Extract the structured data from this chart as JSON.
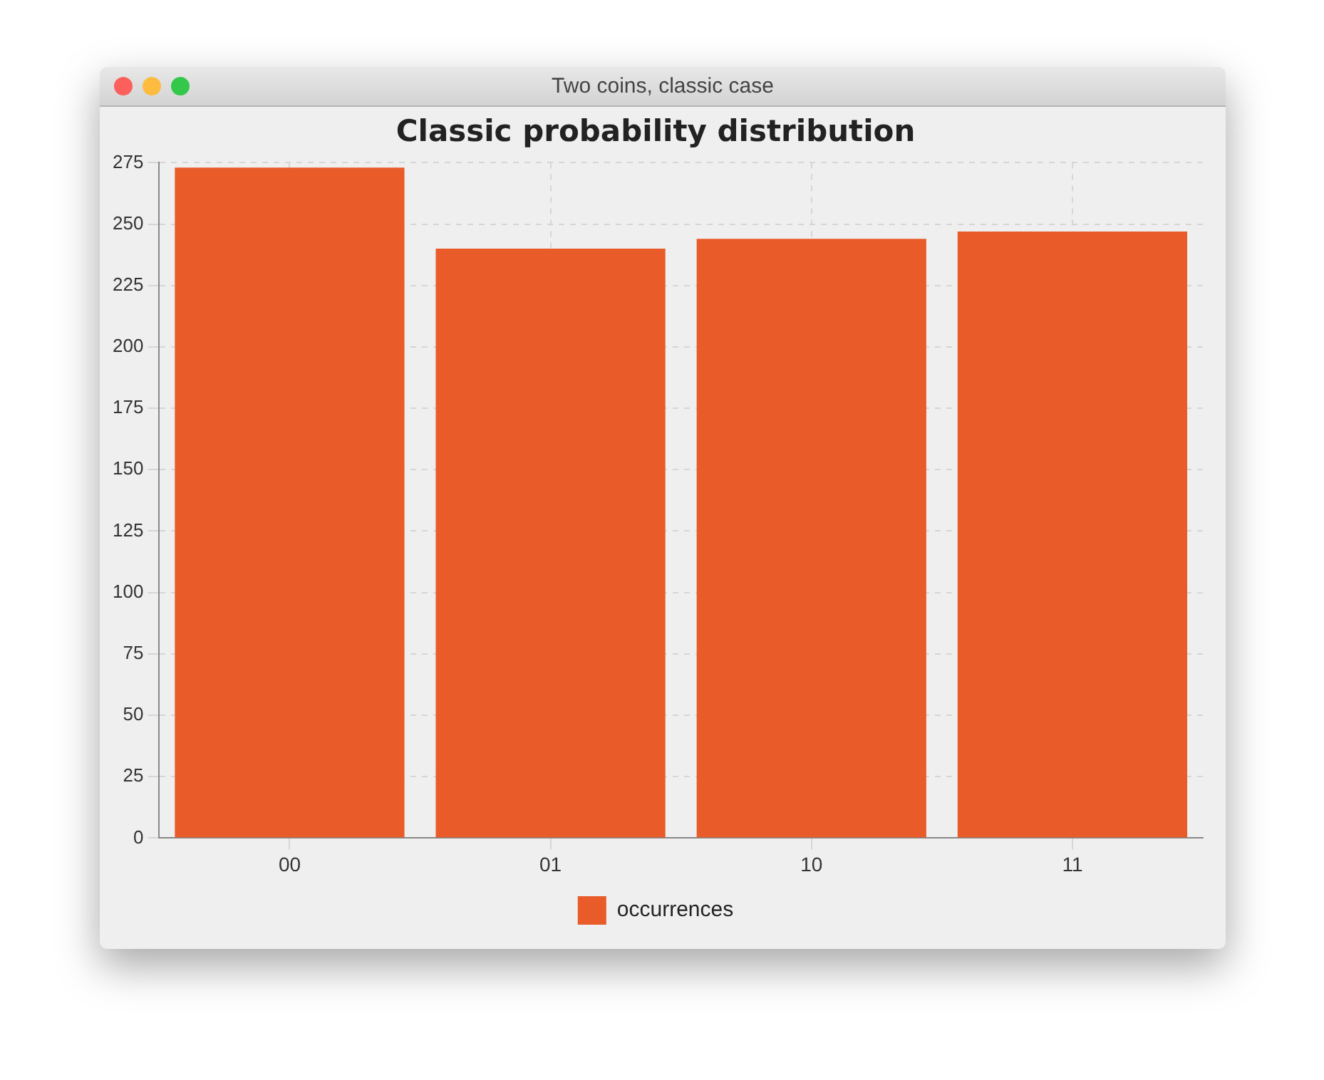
{
  "chart_data": {
    "type": "bar",
    "title": "Classic probability distribution",
    "annotations": [
      "Two coins, classic case"
    ],
    "categories": [
      "00",
      "01",
      "10",
      "11"
    ],
    "series": [
      {
        "name": "occurrences",
        "color": "#e95b29",
        "values": [
          273,
          240,
          244,
          247
        ]
      }
    ],
    "ylim": [
      0,
      275
    ],
    "yticks": [
      0,
      25,
      50,
      75,
      100,
      125,
      150,
      175,
      200,
      225,
      250,
      275
    ],
    "grid": true,
    "legend": "bottom"
  }
}
